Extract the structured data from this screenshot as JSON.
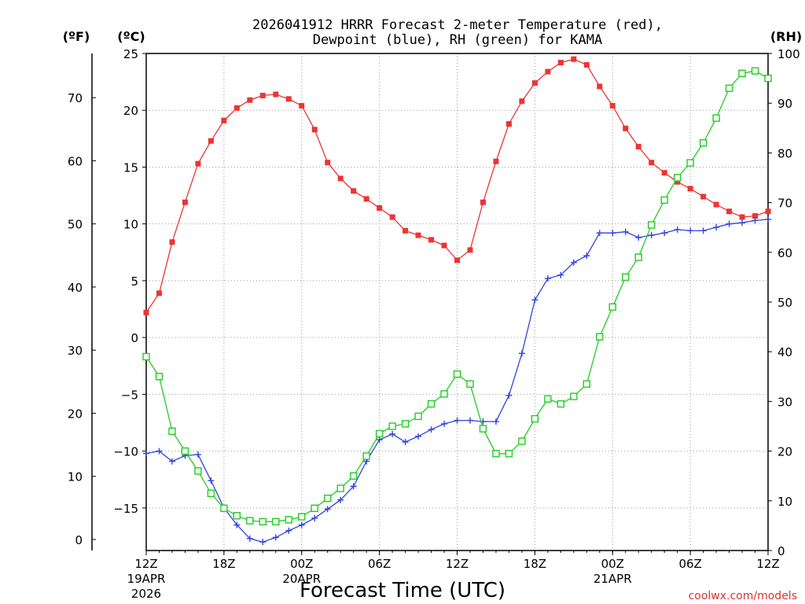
{
  "chart_data": {
    "type": "line",
    "title_line1": "2026041912 HRRR Forecast 2-meter Temperature (red),",
    "title_line2": "Dewpoint (blue), RH (green) for KAMA",
    "xlabel": "Forecast Time (UTC)",
    "credit": "coolwx.com/models",
    "unit_labels": {
      "fahrenheit": "(ºF)",
      "celsius": "(ºC)",
      "rh": "(RH)"
    },
    "x_ticks": [
      {
        "hour": 0,
        "label": "12Z",
        "date": "19APR",
        "year": "2026"
      },
      {
        "hour": 6,
        "label": "18Z",
        "date": "",
        "year": ""
      },
      {
        "hour": 12,
        "label": "00Z",
        "date": "20APR",
        "year": ""
      },
      {
        "hour": 18,
        "label": "06Z",
        "date": "",
        "year": ""
      },
      {
        "hour": 24,
        "label": "12Z",
        "date": "",
        "year": ""
      },
      {
        "hour": 30,
        "label": "18Z",
        "date": "",
        "year": ""
      },
      {
        "hour": 36,
        "label": "00Z",
        "date": "21APR",
        "year": ""
      },
      {
        "hour": 42,
        "label": "06Z",
        "date": "",
        "year": ""
      },
      {
        "hour": 48,
        "label": "12Z",
        "date": "",
        "year": ""
      }
    ],
    "xlim": [
      0,
      48
    ],
    "celsius_axis": {
      "ylim": [
        -18.75,
        25.0
      ],
      "ticks": [
        "25",
        "20",
        "15",
        "10",
        "5",
        "0",
        "−5",
        "−10",
        "−15"
      ],
      "tick_values": [
        25,
        20,
        15,
        10,
        5,
        0,
        -5,
        -10,
        -15
      ]
    },
    "fahrenheit_axis": {
      "ticks": [
        "70",
        "60",
        "50",
        "40",
        "30",
        "20",
        "10",
        "0"
      ],
      "tick_values": [
        70,
        60,
        50,
        40,
        30,
        20,
        10,
        0
      ]
    },
    "rh_axis": {
      "ylim": [
        0,
        100
      ],
      "ticks": [
        "100",
        "90",
        "80",
        "70",
        "60",
        "50",
        "40",
        "30",
        "20",
        "10",
        "0"
      ],
      "tick_values": [
        100,
        90,
        80,
        70,
        60,
        50,
        40,
        30,
        20,
        10,
        0
      ]
    },
    "hours": [
      0,
      1,
      2,
      3,
      4,
      5,
      6,
      7,
      8,
      9,
      10,
      11,
      12,
      13,
      14,
      15,
      16,
      17,
      18,
      19,
      20,
      21,
      22,
      23,
      24,
      25,
      26,
      27,
      28,
      29,
      30,
      31,
      32,
      33,
      34,
      35,
      36,
      37,
      38,
      39,
      40,
      41,
      42,
      43,
      44,
      45,
      46,
      47,
      48
    ],
    "series": [
      {
        "name": "Temperature",
        "unit": "C",
        "color": "#ee3333",
        "marker": "filled-square",
        "values": [
          2.2,
          3.9,
          8.4,
          11.9,
          15.3,
          17.3,
          19.1,
          20.2,
          20.9,
          21.3,
          21.4,
          21.0,
          20.4,
          18.3,
          15.4,
          14.0,
          12.9,
          12.2,
          11.4,
          10.6,
          9.4,
          9.0,
          8.6,
          8.1,
          6.8,
          7.7,
          11.9,
          15.5,
          18.8,
          20.8,
          22.4,
          23.4,
          24.2,
          24.5,
          24.0,
          22.1,
          20.4,
          18.4,
          16.8,
          15.4,
          14.5,
          13.7,
          13.1,
          12.4,
          11.7,
          11.1,
          10.6,
          10.7,
          11.1
        ]
      },
      {
        "name": "Dewpoint",
        "unit": "C",
        "color": "#3344dd",
        "marker": "plus",
        "values": [
          -10.2,
          -10.0,
          -10.9,
          -10.4,
          -10.3,
          -12.6,
          -15.0,
          -16.5,
          -17.7,
          -18.0,
          -17.6,
          -17.0,
          -16.5,
          -15.9,
          -15.1,
          -14.3,
          -13.1,
          -10.9,
          -9.0,
          -8.5,
          -9.2,
          -8.7,
          -8.1,
          -7.6,
          -7.3,
          -7.3,
          -7.4,
          -7.4,
          -5.1,
          -1.4,
          3.3,
          5.2,
          5.5,
          6.6,
          7.2,
          9.2,
          9.2,
          9.3,
          8.8,
          9.0,
          9.2,
          9.5,
          9.4,
          9.4,
          9.7,
          10.0,
          10.1,
          10.3,
          10.4
        ]
      },
      {
        "name": "RH",
        "unit": "%",
        "color": "#22cc22",
        "marker": "open-square",
        "values": [
          39.0,
          35.0,
          24.0,
          20.0,
          16.0,
          11.5,
          8.5,
          7.0,
          6.0,
          5.8,
          5.8,
          6.2,
          6.8,
          8.5,
          10.5,
          12.5,
          15.0,
          19.0,
          23.5,
          25.0,
          25.5,
          27.0,
          29.5,
          31.5,
          35.5,
          33.5,
          24.5,
          19.5,
          19.5,
          22.0,
          26.5,
          30.5,
          29.5,
          31.0,
          33.5,
          43.0,
          49.0,
          55.0,
          59.0,
          65.5,
          70.5,
          75.0,
          78.0,
          82.0,
          87.0,
          93.0,
          96.0,
          96.5,
          95.0
        ]
      }
    ]
  }
}
